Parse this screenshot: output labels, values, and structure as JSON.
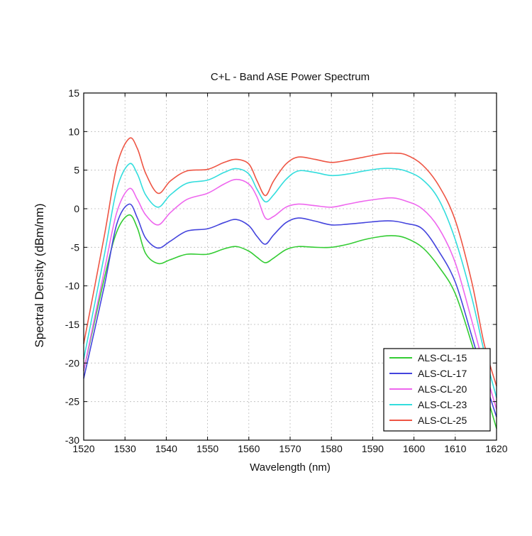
{
  "chart_data": {
    "type": "line",
    "title": "C+L - Band ASE Power Spectrum",
    "xlabel": "Wavelength (nm)",
    "ylabel": "Spectral Density (dBm/nm)",
    "xlim": [
      1520,
      1620
    ],
    "ylim": [
      -30,
      15
    ],
    "xticks": [
      1520,
      1530,
      1540,
      1550,
      1560,
      1570,
      1580,
      1590,
      1600,
      1610,
      1620
    ],
    "yticks": [
      15,
      10,
      5,
      0,
      -5,
      -10,
      -15,
      -20,
      -25,
      -30
    ],
    "grid": true,
    "legend_position": "bottom-right",
    "series": [
      {
        "name": "ALS-CL-15",
        "color": "#33cc33",
        "x": [
          1520,
          1525,
          1528,
          1531,
          1533,
          1535,
          1538,
          1541,
          1545,
          1550,
          1554,
          1557,
          1560,
          1562,
          1564,
          1566,
          1569,
          1572,
          1576,
          1580,
          1584,
          1588,
          1592,
          1595,
          1598,
          1602,
          1606,
          1610,
          1614,
          1617,
          1620
        ],
        "y": [
          -21,
          -9,
          -3,
          -0.8,
          -2.5,
          -5.8,
          -7.1,
          -6.6,
          -5.9,
          -5.9,
          -5.2,
          -4.9,
          -5.5,
          -6.3,
          -7.0,
          -6.4,
          -5.3,
          -4.9,
          -5.0,
          -5.0,
          -4.6,
          -4.0,
          -3.6,
          -3.5,
          -3.8,
          -5.0,
          -7.5,
          -11,
          -17.5,
          -23,
          -28.5
        ]
      },
      {
        "name": "ALS-CL-17",
        "color": "#4444dd",
        "x": [
          1520,
          1525,
          1528,
          1531,
          1533,
          1535,
          1538,
          1541,
          1545,
          1550,
          1554,
          1557,
          1560,
          1562,
          1564,
          1566,
          1569,
          1572,
          1576,
          1580,
          1584,
          1588,
          1592,
          1595,
          1598,
          1602,
          1606,
          1610,
          1614,
          1617,
          1620
        ],
        "y": [
          -22,
          -10,
          -2,
          0.6,
          -1.2,
          -3.8,
          -5.1,
          -4.2,
          -2.9,
          -2.6,
          -1.8,
          -1.4,
          -2.2,
          -3.6,
          -4.6,
          -3.4,
          -1.8,
          -1.2,
          -1.6,
          -2.1,
          -2.0,
          -1.8,
          -1.6,
          -1.6,
          -1.9,
          -2.6,
          -5.5,
          -9.5,
          -16.5,
          -22,
          -27
        ]
      },
      {
        "name": "ALS-CL-20",
        "color": "#ee66ee",
        "x": [
          1520,
          1525,
          1528,
          1531,
          1533,
          1535,
          1538,
          1541,
          1545,
          1550,
          1554,
          1557,
          1560,
          1562,
          1564,
          1566,
          1569,
          1572,
          1576,
          1580,
          1584,
          1588,
          1592,
          1595,
          1598,
          1602,
          1606,
          1610,
          1614,
          1617,
          1620
        ],
        "y": [
          -21,
          -8,
          -0.5,
          2.6,
          1.2,
          -0.8,
          -2.1,
          -0.5,
          1.2,
          2.0,
          3.2,
          3.8,
          3.2,
          1.5,
          -1.2,
          -1.0,
          0.2,
          0.6,
          0.4,
          0.2,
          0.6,
          1.0,
          1.3,
          1.4,
          1.0,
          0.0,
          -2.5,
          -7,
          -14.5,
          -20.5,
          -26
        ]
      },
      {
        "name": "ALS-CL-23",
        "color": "#33dddd",
        "x": [
          1520,
          1525,
          1528,
          1531,
          1533,
          1535,
          1538,
          1541,
          1545,
          1550,
          1554,
          1557,
          1560,
          1562,
          1564,
          1566,
          1569,
          1572,
          1576,
          1580,
          1584,
          1588,
          1592,
          1595,
          1598,
          1602,
          1606,
          1610,
          1614,
          1617,
          1620
        ],
        "y": [
          -19.5,
          -6,
          2.5,
          5.8,
          4.5,
          1.8,
          0.2,
          1.8,
          3.3,
          3.7,
          4.7,
          5.2,
          4.5,
          2.5,
          0.9,
          1.8,
          3.8,
          4.9,
          4.7,
          4.3,
          4.5,
          4.9,
          5.2,
          5.2,
          4.9,
          3.8,
          1.2,
          -4,
          -11.5,
          -18.5,
          -24.5
        ]
      },
      {
        "name": "ALS-CL-25",
        "color": "#ee5544",
        "x": [
          1520,
          1525,
          1528,
          1531,
          1533,
          1535,
          1538,
          1541,
          1545,
          1550,
          1554,
          1557,
          1560,
          1562,
          1564,
          1566,
          1569,
          1572,
          1576,
          1580,
          1584,
          1588,
          1592,
          1595,
          1598,
          1602,
          1606,
          1610,
          1614,
          1617,
          1620
        ],
        "y": [
          -17.5,
          -3.5,
          5.5,
          9.1,
          7.8,
          4.6,
          2.0,
          3.6,
          4.9,
          5.1,
          6.0,
          6.4,
          5.8,
          3.6,
          1.7,
          3.6,
          5.8,
          6.7,
          6.4,
          6.0,
          6.3,
          6.7,
          7.1,
          7.2,
          7.0,
          5.7,
          3.0,
          -1.5,
          -9.5,
          -17.5,
          -23
        ]
      }
    ]
  }
}
